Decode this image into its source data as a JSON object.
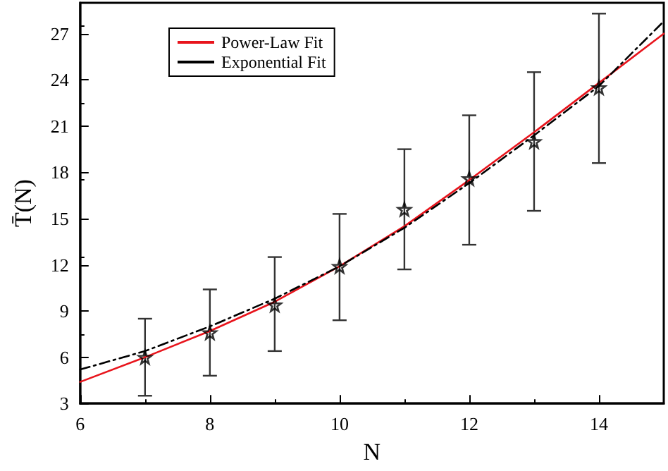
{
  "chart_data": {
    "type": "line",
    "xlabel": "N",
    "ylabel": "T̄(N)",
    "xlim": [
      6,
      15
    ],
    "xticks": [
      6,
      8,
      10,
      12,
      14
    ],
    "ylim": [
      3,
      29
    ],
    "yticks": [
      3,
      6,
      9,
      12,
      15,
      18,
      21,
      24,
      27
    ],
    "grid": false,
    "legend": "top left",
    "series": [
      {
        "type": "scatter",
        "color": "#000000",
        "marker": "star",
        "x": [
          7,
          8,
          9,
          10,
          11,
          12,
          13,
          14
        ],
        "values": [
          6.0,
          7.6,
          9.4,
          11.9,
          15.6,
          17.6,
          20.0,
          23.5
        ],
        "errors": [
          [
            3.5,
            8.5
          ],
          [
            4.8,
            10.4
          ],
          [
            6.4,
            12.5
          ],
          [
            8.4,
            15.3
          ],
          [
            11.7,
            19.5
          ],
          [
            13.3,
            21.7
          ],
          [
            15.5,
            24.5
          ],
          [
            18.6,
            28.3
          ]
        ]
      },
      {
        "name": "Power-Law Fit",
        "color": "#e8141c",
        "marker": "none",
        "line_style": "solid",
        "x": [
          6,
          7,
          8,
          9,
          10,
          11,
          12,
          13,
          14,
          15
        ],
        "values": [
          4.4,
          6.0,
          7.7,
          9.6,
          11.9,
          14.5,
          17.5,
          20.6,
          23.8,
          27.0
        ]
      },
      {
        "name": "Exponential Fit",
        "color": "#000000",
        "marker": "none",
        "line_style": "dashed",
        "x": [
          6,
          7,
          8,
          9,
          10,
          11,
          12,
          13,
          14,
          15
        ],
        "values": [
          5.2,
          6.4,
          8.0,
          9.8,
          11.9,
          14.4,
          17.3,
          20.4,
          23.6,
          27.8
        ]
      }
    ]
  }
}
